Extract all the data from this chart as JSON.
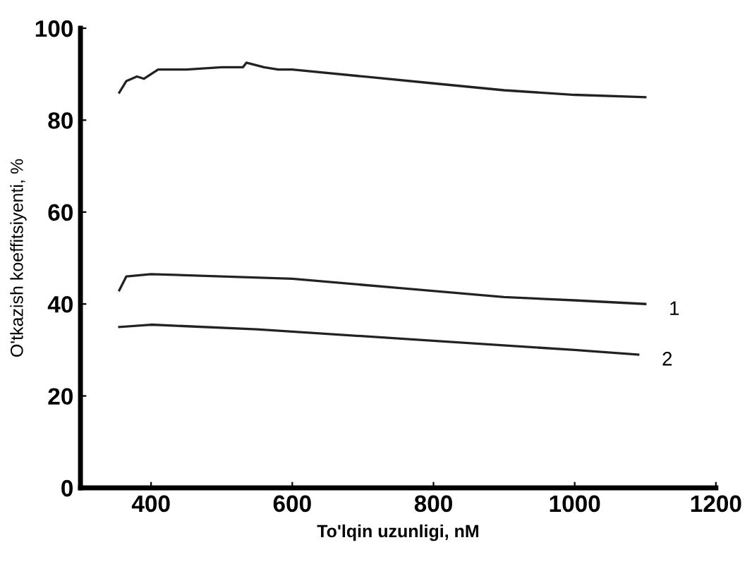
{
  "chart_data": {
    "type": "line",
    "xlabel": "To'lqin uzunligi, nM",
    "ylabel": "O'tkazish koeffitsiyenti, %",
    "xlim": [
      300,
      1200
    ],
    "xticks": [
      400,
      600,
      800,
      1000,
      1200
    ],
    "ylim": [
      0,
      100
    ],
    "yticks": [
      0,
      20,
      40,
      60,
      80,
      100
    ],
    "grid": false,
    "legend": false,
    "marker": "none",
    "line_style": "solid",
    "series": [
      {
        "color": "#222222",
        "x": [
          355,
          365,
          380,
          390,
          410,
          450,
          500,
          530,
          535,
          560,
          580,
          600,
          700,
          800,
          900,
          1000,
          1100
        ],
        "values": [
          86,
          88.5,
          89.5,
          89,
          91,
          91,
          91.5,
          91.5,
          92.5,
          91.5,
          91,
          91,
          89.5,
          88,
          86.5,
          85.5,
          85
        ]
      },
      {
        "name": "1",
        "color": "#222222",
        "x": [
          355,
          365,
          400,
          600,
          750,
          900,
          1000,
          1100
        ],
        "values": [
          43,
          46,
          46.5,
          45.5,
          43.5,
          41.5,
          40.8,
          40
        ]
      },
      {
        "name": "2",
        "color": "#222222",
        "x": [
          355,
          400,
          550,
          600,
          800,
          1000,
          1090
        ],
        "values": [
          35,
          35.5,
          34.5,
          34,
          32,
          30,
          29
        ]
      }
    ]
  }
}
